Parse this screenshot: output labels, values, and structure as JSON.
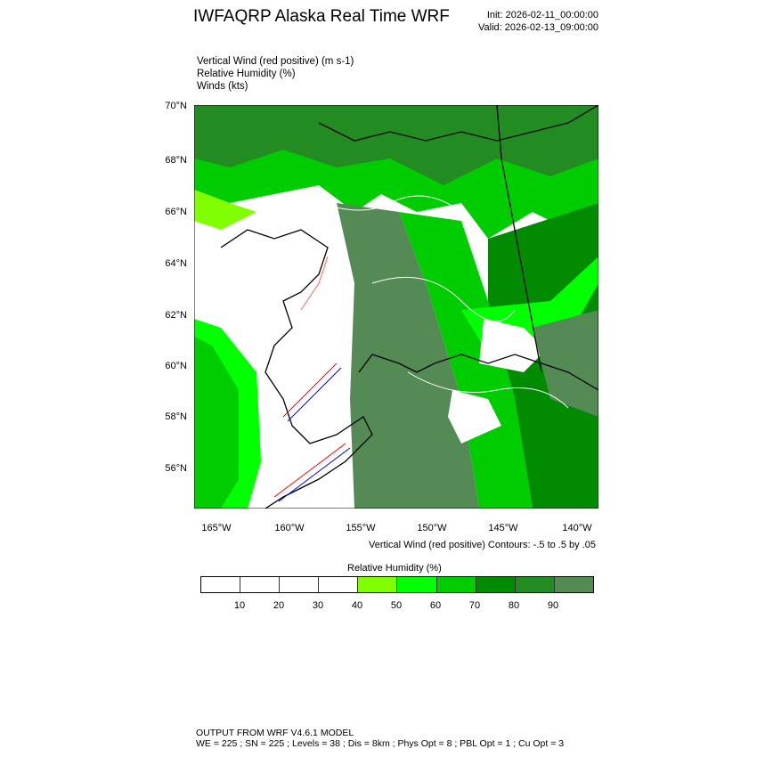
{
  "header": {
    "title": "IWFAQRP Alaska Real Time WRF",
    "init": "Init: 2026-02-11_00:00:00",
    "valid": "Valid: 2026-02-13_09:00:00"
  },
  "fields": [
    "Vertical Wind (red positive)   (m s-1)",
    "Relative Humidity   (%)",
    "Winds   (kts)"
  ],
  "map": {
    "lat_labels": [
      "70°N",
      "68°N",
      "66°N",
      "64°N",
      "62°N",
      "60°N",
      "58°N",
      "56°N"
    ],
    "lon_labels": [
      "165°W",
      "160°W",
      "155°W",
      "150°W",
      "145°W",
      "140°W"
    ],
    "contour_note": "Vertical Wind (red positive) Contours: -.5 to .5 by .05",
    "positive_color": "#ff0000",
    "negative_color": "#0000ff",
    "rh_contour_color": "#ffffff"
  },
  "colorbar": {
    "title": "Relative Humidity  (%)",
    "ticks": [
      "10",
      "20",
      "30",
      "40",
      "50",
      "60",
      "70",
      "80",
      "90"
    ],
    "colors": [
      "#ffffff",
      "#ffffff",
      "#ffffff",
      "#ffffff",
      "#80ff00",
      "#00ff00",
      "#00cd00",
      "#008b00",
      "#228b22",
      "#548b54"
    ]
  },
  "footer": {
    "line1": "OUTPUT FROM WRF V4.6.1 MODEL",
    "line2": "WE = 225 ; SN = 225 ; Levels = 38 ; Dis = 8km ; Phys Opt = 8 ; PBL Opt = 1 ; Cu Opt = 3"
  }
}
